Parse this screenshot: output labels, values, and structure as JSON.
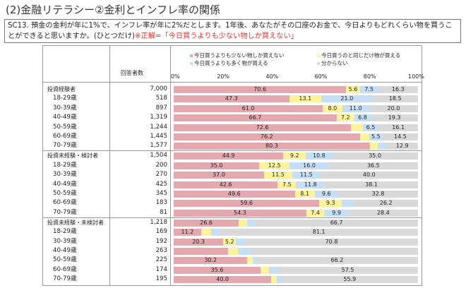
{
  "title": "(2)金融リテラシー②金利とインフレ率の関係",
  "question": {
    "text": "SC13. 預金の金利が年に1%で、インフレ率が年に2%だとします。1年後、あなたがその口座のお金で、今日よりもどれくらい物を買うことができると思いますか。(ひとつだけ)",
    "answer": "※正解=「今日買うよりも少ない物しか買えない」"
  },
  "chart_data": {
    "type": "bar",
    "orientation": "horizontal",
    "stacked": true,
    "n_header": "回答者数",
    "xlim": [
      0,
      100
    ],
    "x_ticks": [
      "0%",
      "20%",
      "40%",
      "60%",
      "80%",
      "100%"
    ],
    "series": [
      {
        "name": "今日買うよりも少ない物しか買えない",
        "color": "#e3a9ae"
      },
      {
        "name": "今日買うのと同じだけ物が買える",
        "color": "#fcf49c"
      },
      {
        "name": "今日買うよりも多く物が買える",
        "color": "#c6dff5"
      },
      {
        "name": "分からない",
        "color": "#d9d9d9"
      }
    ],
    "groups": [
      {
        "rows": [
          {
            "label": "投資経験者",
            "n": "7,000",
            "values": [
              70.6,
              5.6,
              7.5,
              16.3
            ],
            "labels": [
              "70.6",
              "5.6",
              "7.5",
              "16.3"
            ]
          },
          {
            "label": "18-29歳",
            "n": "518",
            "values": [
              47.3,
              13.1,
              21.0,
              18.5
            ],
            "labels": [
              "47.3",
              "13.1",
              "21.0",
              "18.5"
            ]
          },
          {
            "label": "30-39歳",
            "n": "897",
            "values": [
              61.0,
              8.0,
              11.0,
              20.0
            ],
            "labels": [
              "61.0",
              "8.0",
              "11.0",
              "20.0"
            ]
          },
          {
            "label": "40-49歳",
            "n": "1,319",
            "values": [
              66.7,
              7.2,
              6.8,
              19.3
            ],
            "labels": [
              "66.7",
              "7.2",
              "6.8",
              "19.3"
            ]
          },
          {
            "label": "50-59歳",
            "n": "1,244",
            "values": [
              72.6,
              4.8,
              6.5,
              16.1
            ],
            "labels": [
              "72.6",
              "",
              "6.5",
              "16.1"
            ]
          },
          {
            "label": "60-69歳",
            "n": "1,445",
            "values": [
              76.2,
              3.8,
              5.5,
              14.5
            ],
            "labels": [
              "76.2",
              "",
              "5.5",
              "14.5"
            ]
          },
          {
            "label": "70-79歳",
            "n": "1,577",
            "values": [
              80.3,
              3.1,
              3.7,
              12.9
            ],
            "labels": [
              "80.3",
              "",
              "",
              "12.9"
            ]
          }
        ]
      },
      {
        "rows": [
          {
            "label": "投資未経験・検討者",
            "n": "1,504",
            "values": [
              44.9,
              9.2,
              10.8,
              35.0
            ],
            "labels": [
              "44.9",
              "9.2",
              "10.8",
              "35.0"
            ]
          },
          {
            "label": "18-29歳",
            "n": "200",
            "values": [
              35.0,
              12.5,
              16.0,
              36.5
            ],
            "labels": [
              "35.0",
              "12.5",
              "16.0",
              "36.5"
            ]
          },
          {
            "label": "30-39歳",
            "n": "270",
            "values": [
              37.0,
              11.5,
              11.5,
              40.0
            ],
            "labels": [
              "37.0",
              "11.5",
              "11.5",
              "40.0"
            ]
          },
          {
            "label": "40-49歳",
            "n": "425",
            "values": [
              42.6,
              7.5,
              11.8,
              38.1
            ],
            "labels": [
              "42.6",
              "7.5",
              "11.8",
              "38.1"
            ]
          },
          {
            "label": "50-59歳",
            "n": "345",
            "values": [
              49.6,
              8.1,
              9.6,
              32.8
            ],
            "labels": [
              "49.6",
              "8.1",
              "9.6",
              "32.8"
            ]
          },
          {
            "label": "60-69歳",
            "n": "183",
            "values": [
              59.6,
              9.3,
              4.9,
              26.2
            ],
            "labels": [
              "59.6",
              "9.3",
              "",
              "26.2"
            ]
          },
          {
            "label": "70-79歳",
            "n": "81",
            "values": [
              54.3,
              7.4,
              9.9,
              28.4
            ],
            "labels": [
              "54.3",
              "7.4",
              "9.9",
              "28.4"
            ]
          }
        ]
      },
      {
        "rows": [
          {
            "label": "投資未経験・未検討者",
            "n": "1,218",
            "values": [
              26.6,
              3.4,
              3.3,
              66.7
            ],
            "labels": [
              "26.6",
              "",
              "",
              "66.7"
            ]
          },
          {
            "label": "18-29歳",
            "n": "169",
            "values": [
              11.2,
              4.2,
              3.5,
              81.1
            ],
            "labels": [
              "11.2",
              "",
              "",
              "81.1"
            ]
          },
          {
            "label": "30-39歳",
            "n": "192",
            "values": [
              20.3,
              5.2,
              3.7,
              70.8
            ],
            "labels": [
              "20.3",
              "5.2",
              "",
              "70.8"
            ]
          },
          {
            "label": "40-49歳",
            "n": "263",
            "values": [
              22.2,
              4.0,
              5.2,
              68.6
            ],
            "labels": [
              "",
              "",
              "",
              ""
            ]
          },
          {
            "label": "50-59歳",
            "n": "225",
            "values": [
              30.2,
              2.3,
              1.3,
              66.2
            ],
            "labels": [
              "30.2",
              "",
              "",
              "66.2"
            ]
          },
          {
            "label": "60-69歳",
            "n": "174",
            "values": [
              35.6,
              3.4,
              3.5,
              57.5
            ],
            "labels": [
              "35.6",
              "",
              "",
              "57.5"
            ]
          },
          {
            "label": "70-79歳",
            "n": "195",
            "values": [
              40.0,
              2.1,
              2.0,
              55.9
            ],
            "labels": [
              "40.0",
              "",
              "",
              "55.9"
            ]
          }
        ]
      }
    ]
  }
}
